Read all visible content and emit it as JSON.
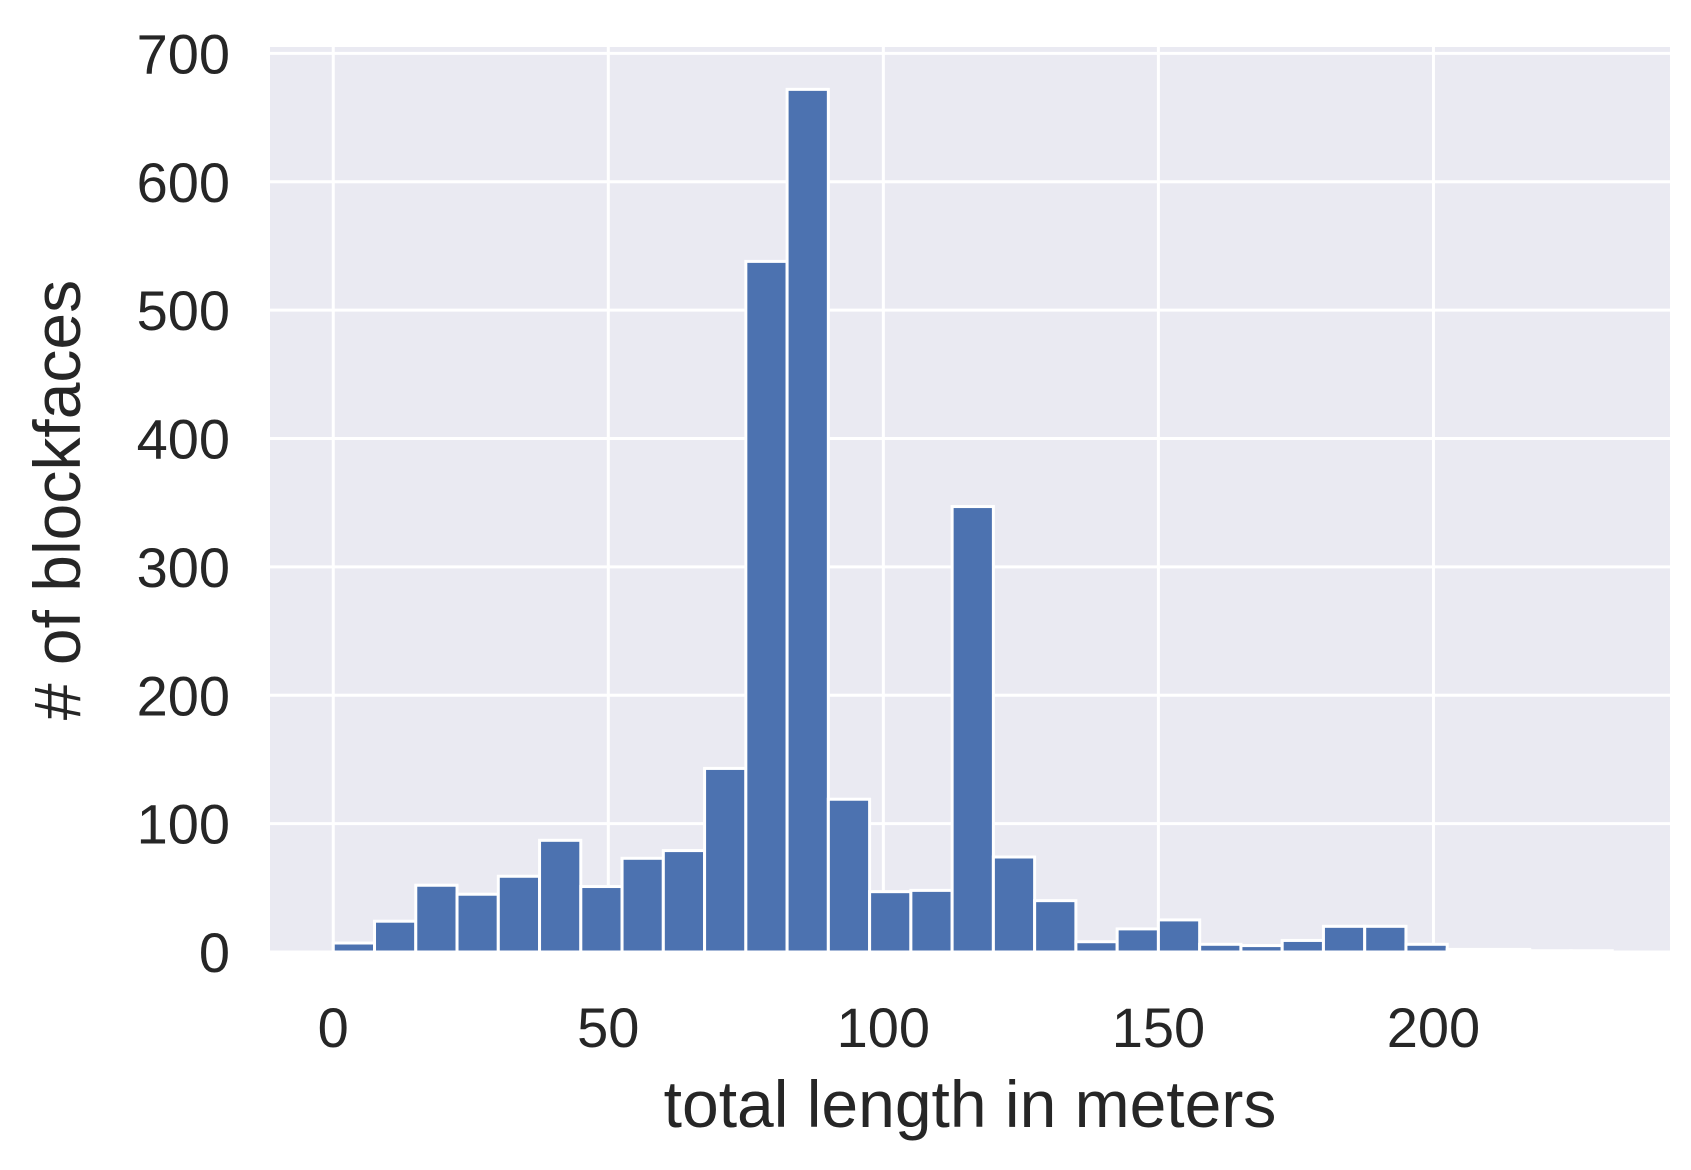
{
  "chart_data": {
    "type": "bar",
    "subtype": "histogram",
    "title": "",
    "xlabel": "total length in meters",
    "ylabel": "# of blockfaces",
    "xlim": [
      -11.5,
      243
    ],
    "ylim": [
      0,
      705
    ],
    "xticks": [
      0,
      50,
      100,
      150,
      200
    ],
    "yticks": [
      0,
      100,
      200,
      300,
      400,
      500,
      600,
      700
    ],
    "grid": true,
    "legend": "none",
    "colors": {
      "bar_fill": "#4c72b0",
      "bar_edge": "#ffffff",
      "plot_background": "#eaeaf2",
      "grid": "#ffffff",
      "text": "#262626"
    },
    "bins": [
      {
        "x0": 0.0,
        "x1": 7.5,
        "value": 7
      },
      {
        "x0": 7.5,
        "x1": 15.0,
        "value": 24
      },
      {
        "x0": 15.0,
        "x1": 22.5,
        "value": 52
      },
      {
        "x0": 22.5,
        "x1": 30.0,
        "value": 45
      },
      {
        "x0": 30.0,
        "x1": 37.5,
        "value": 59
      },
      {
        "x0": 37.5,
        "x1": 45.0,
        "value": 87
      },
      {
        "x0": 45.0,
        "x1": 52.5,
        "value": 51
      },
      {
        "x0": 52.5,
        "x1": 60.0,
        "value": 73
      },
      {
        "x0": 60.0,
        "x1": 67.5,
        "value": 79
      },
      {
        "x0": 67.5,
        "x1": 75.0,
        "value": 143
      },
      {
        "x0": 75.0,
        "x1": 82.5,
        "value": 538
      },
      {
        "x0": 82.5,
        "x1": 90.0,
        "value": 672
      },
      {
        "x0": 90.0,
        "x1": 97.5,
        "value": 119
      },
      {
        "x0": 97.5,
        "x1": 105.0,
        "value": 47
      },
      {
        "x0": 105.0,
        "x1": 112.5,
        "value": 48
      },
      {
        "x0": 112.5,
        "x1": 120.0,
        "value": 347
      },
      {
        "x0": 120.0,
        "x1": 127.5,
        "value": 74
      },
      {
        "x0": 127.5,
        "x1": 135.0,
        "value": 40
      },
      {
        "x0": 135.0,
        "x1": 142.5,
        "value": 8
      },
      {
        "x0": 142.5,
        "x1": 150.0,
        "value": 18
      },
      {
        "x0": 150.0,
        "x1": 157.5,
        "value": 25
      },
      {
        "x0": 157.5,
        "x1": 165.0,
        "value": 6
      },
      {
        "x0": 165.0,
        "x1": 172.5,
        "value": 5
      },
      {
        "x0": 172.5,
        "x1": 180.0,
        "value": 9
      },
      {
        "x0": 180.0,
        "x1": 187.5,
        "value": 20
      },
      {
        "x0": 187.5,
        "x1": 195.0,
        "value": 20
      },
      {
        "x0": 195.0,
        "x1": 202.5,
        "value": 6
      },
      {
        "x0": 202.5,
        "x1": 210.0,
        "value": 2
      },
      {
        "x0": 210.0,
        "x1": 217.5,
        "value": 2
      },
      {
        "x0": 217.5,
        "x1": 225.0,
        "value": 1
      },
      {
        "x0": 225.0,
        "x1": 232.5,
        "value": 1
      }
    ]
  }
}
